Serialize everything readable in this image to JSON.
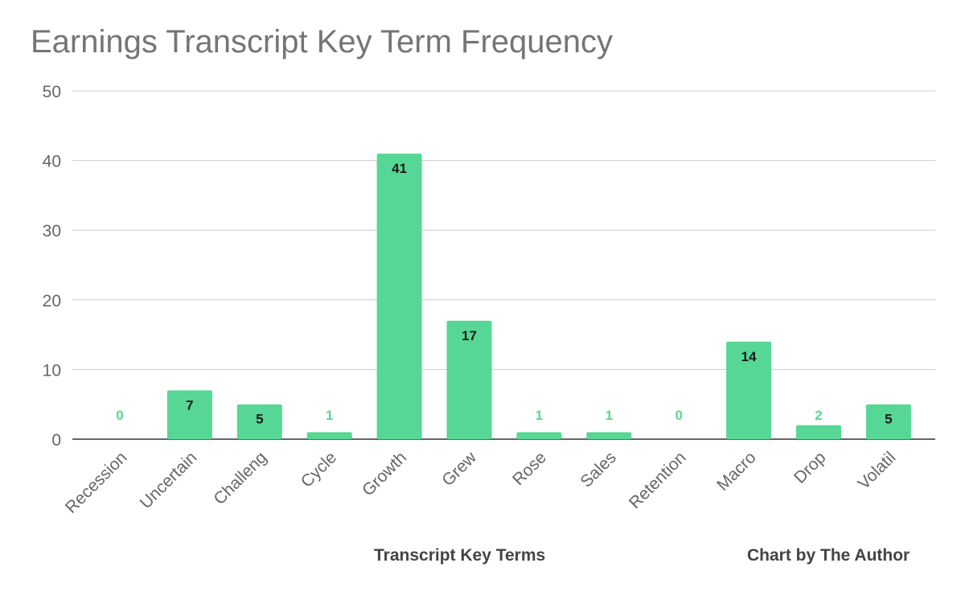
{
  "chart_data": {
    "type": "bar",
    "title": "Earnings Transcript Key Term Frequency",
    "xlabel": "Transcript Key Terms",
    "ylabel": "",
    "categories": [
      "Recession",
      "Uncertain",
      "Challeng",
      "Cycle",
      "Growth",
      "Grew",
      "Rose",
      "Sales",
      "Retention",
      "Macro",
      "Drop",
      "Volatil"
    ],
    "values": [
      0,
      7,
      5,
      1,
      41,
      17,
      1,
      1,
      0,
      14,
      2,
      5
    ],
    "ylim": [
      0,
      50
    ],
    "yticks": [
      0,
      10,
      20,
      30,
      40,
      50
    ],
    "grid": true,
    "legend": "none",
    "bar_color": "#57d795",
    "label_inside_color": "#1a1a1a",
    "label_outside_color": "#57d795",
    "credit": "Chart by The Author"
  }
}
